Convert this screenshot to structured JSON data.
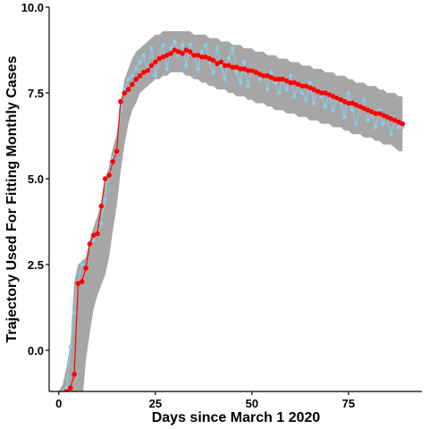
{
  "chart_data": {
    "type": "line",
    "xlabel": "Days since March 1 2020",
    "ylabel": "Trajectory Used For Fitting Monthly Cases",
    "xlim": [
      -2.5,
      94
    ],
    "ylim": [
      -1.2,
      10
    ],
    "x_ticks": [
      0,
      25,
      50,
      75
    ],
    "y_ticks": [
      0.0,
      2.5,
      5.0,
      7.5,
      10.0
    ],
    "y_tick_labels": [
      "0.0",
      "2.5",
      "5.0",
      "7.5",
      "10.0"
    ],
    "grid": false,
    "legend": "none",
    "colors": {
      "band": "#a6a6a6",
      "observed": "#87ceeb",
      "fitted": "#ff0000"
    },
    "series": [
      {
        "role": "interval",
        "x": [
          0,
          1,
          2,
          3,
          4,
          5,
          6,
          7,
          8,
          9,
          10,
          11,
          12,
          13,
          14,
          15,
          16,
          17,
          18,
          19,
          20,
          21,
          22,
          23,
          24,
          25,
          26,
          27,
          28,
          29,
          30,
          31,
          32,
          33,
          34,
          35,
          36,
          37,
          38,
          39,
          40,
          41,
          42,
          43,
          44,
          45,
          46,
          47,
          48,
          49,
          50,
          51,
          52,
          53,
          54,
          55,
          56,
          57,
          58,
          59,
          60,
          61,
          62,
          63,
          64,
          65,
          66,
          67,
          68,
          69,
          70,
          71,
          72,
          73,
          74,
          75,
          76,
          77,
          78,
          79,
          80,
          81,
          82,
          83,
          84,
          85,
          86,
          87,
          88,
          89
        ],
        "lower": [
          -1.6,
          -1.6,
          -1.6,
          -1.6,
          -1.6,
          -1.6,
          -1.6,
          -0.3,
          0.5,
          1.2,
          1.6,
          1.9,
          2.2,
          2.7,
          3.5,
          4.2,
          5.2,
          6.0,
          6.6,
          7.0,
          7.2,
          7.5,
          7.6,
          7.7,
          7.8,
          7.9,
          7.9,
          8.0,
          8.0,
          8.1,
          8.1,
          8.1,
          8.1,
          8.0,
          8.0,
          7.9,
          7.9,
          7.8,
          7.8,
          7.7,
          7.7,
          7.6,
          7.6,
          7.6,
          7.5,
          7.5,
          7.4,
          7.4,
          7.4,
          7.3,
          7.3,
          7.2,
          7.2,
          7.2,
          7.1,
          7.1,
          7.0,
          7.0,
          7.0,
          6.9,
          6.9,
          6.9,
          6.8,
          6.8,
          6.8,
          6.7,
          6.7,
          6.7,
          6.6,
          6.6,
          6.6,
          6.5,
          6.5,
          6.5,
          6.4,
          6.4,
          6.3,
          6.3,
          6.3,
          6.2,
          6.2,
          6.2,
          6.1,
          6.1,
          6.0,
          6.0,
          6.0,
          5.9,
          5.8,
          5.8
        ],
        "upper": [
          -1.2,
          -1.0,
          -0.5,
          0.2,
          2.0,
          2.5,
          2.6,
          2.7,
          3.2,
          3.6,
          3.9,
          4.3,
          4.8,
          5.4,
          5.9,
          6.3,
          7.1,
          7.9,
          8.2,
          8.5,
          8.7,
          8.8,
          8.9,
          9.0,
          9.1,
          9.2,
          9.2,
          9.3,
          9.3,
          9.3,
          9.3,
          9.3,
          9.3,
          9.3,
          9.3,
          9.2,
          9.2,
          9.2,
          9.2,
          9.1,
          9.1,
          9.1,
          9.0,
          9.0,
          9.0,
          8.9,
          8.9,
          8.9,
          8.8,
          8.8,
          8.8,
          8.7,
          8.7,
          8.7,
          8.6,
          8.6,
          8.6,
          8.5,
          8.5,
          8.5,
          8.4,
          8.4,
          8.4,
          8.3,
          8.3,
          8.3,
          8.2,
          8.2,
          8.2,
          8.1,
          8.1,
          8.1,
          8.0,
          8.0,
          8.0,
          7.9,
          7.9,
          7.8,
          7.8,
          7.8,
          7.7,
          7.7,
          7.7,
          7.6,
          7.6,
          7.5,
          7.5,
          7.5,
          7.4,
          7.4
        ]
      },
      {
        "role": "observed",
        "x": [
          0,
          1,
          2,
          3,
          4,
          5,
          6,
          7,
          8,
          9,
          10,
          11,
          12,
          13,
          14,
          15,
          16,
          17,
          18,
          19,
          20,
          21,
          22,
          23,
          24,
          25,
          26,
          27,
          28,
          29,
          30,
          31,
          32,
          33,
          34,
          35,
          36,
          37,
          38,
          39,
          40,
          41,
          42,
          43,
          44,
          45,
          46,
          47,
          48,
          49,
          50,
          51,
          52,
          53,
          54,
          55,
          56,
          57,
          58,
          59,
          60,
          61,
          62,
          63,
          64,
          65,
          66,
          67,
          68,
          69,
          70,
          71,
          72,
          73,
          74,
          75,
          76,
          77,
          78,
          79,
          80,
          81,
          82,
          83,
          84,
          85,
          86,
          87,
          88,
          89
        ],
        "values": [
          -1.3,
          -1.2,
          -1.1,
          0.1,
          1.1,
          2.0,
          2.5,
          2.4,
          3.1,
          3.2,
          3.4,
          3.7,
          4.4,
          5.2,
          5.6,
          5.8,
          7.0,
          7.6,
          7.9,
          8.0,
          8.2,
          8.4,
          8.6,
          8.1,
          8.8,
          8.0,
          8.5,
          8.9,
          8.2,
          8.8,
          9.0,
          8.6,
          8.9,
          8.3,
          8.9,
          8.6,
          8.2,
          8.7,
          8.9,
          8.4,
          8.1,
          8.8,
          8.3,
          7.9,
          8.5,
          8.8,
          8.1,
          7.8,
          8.4,
          7.7,
          8.2,
          8.1,
          7.9,
          8.0,
          7.6,
          8.1,
          7.8,
          7.5,
          7.9,
          7.6,
          8.0,
          7.4,
          7.7,
          7.5,
          7.3,
          7.8,
          7.2,
          7.6,
          7.4,
          7.1,
          7.5,
          7.0,
          7.3,
          7.2,
          6.8,
          7.5,
          7.0,
          6.6,
          7.1,
          7.3,
          6.7,
          6.9,
          6.5,
          7.0,
          6.6,
          6.8,
          6.3,
          6.7,
          6.5,
          6.5
        ]
      },
      {
        "role": "fitted",
        "x": [
          0,
          1,
          2,
          3,
          4,
          5,
          6,
          7,
          8,
          9,
          10,
          11,
          12,
          13,
          14,
          15,
          16,
          17,
          18,
          19,
          20,
          21,
          22,
          23,
          24,
          25,
          26,
          27,
          28,
          29,
          30,
          31,
          32,
          33,
          34,
          35,
          36,
          37,
          38,
          39,
          40,
          41,
          42,
          43,
          44,
          45,
          46,
          47,
          48,
          49,
          50,
          51,
          52,
          53,
          54,
          55,
          56,
          57,
          58,
          59,
          60,
          61,
          62,
          63,
          64,
          65,
          66,
          67,
          68,
          69,
          70,
          71,
          72,
          73,
          74,
          75,
          76,
          77,
          78,
          79,
          80,
          81,
          82,
          83,
          84,
          85,
          86,
          87,
          88,
          89
        ],
        "values": [
          -1.4,
          -1.3,
          -1.2,
          -1.1,
          -0.7,
          1.95,
          2.0,
          2.4,
          3.1,
          3.35,
          3.4,
          4.2,
          5.0,
          5.1,
          5.5,
          5.8,
          7.25,
          7.5,
          7.6,
          7.75,
          7.9,
          8.0,
          8.1,
          8.15,
          8.3,
          8.4,
          8.5,
          8.55,
          8.6,
          8.65,
          8.75,
          8.7,
          8.65,
          8.75,
          8.7,
          8.6,
          8.6,
          8.55,
          8.55,
          8.5,
          8.45,
          8.35,
          8.4,
          8.3,
          8.3,
          8.25,
          8.25,
          8.2,
          8.2,
          8.15,
          8.15,
          8.1,
          8.05,
          8.0,
          8.0,
          7.95,
          7.9,
          7.9,
          7.9,
          7.85,
          7.8,
          7.8,
          7.75,
          7.7,
          7.7,
          7.65,
          7.6,
          7.55,
          7.5,
          7.5,
          7.45,
          7.4,
          7.35,
          7.3,
          7.25,
          7.2,
          7.2,
          7.15,
          7.1,
          7.05,
          7.0,
          6.95,
          6.9,
          6.9,
          6.85,
          6.8,
          6.75,
          6.7,
          6.65,
          6.6
        ]
      }
    ]
  }
}
